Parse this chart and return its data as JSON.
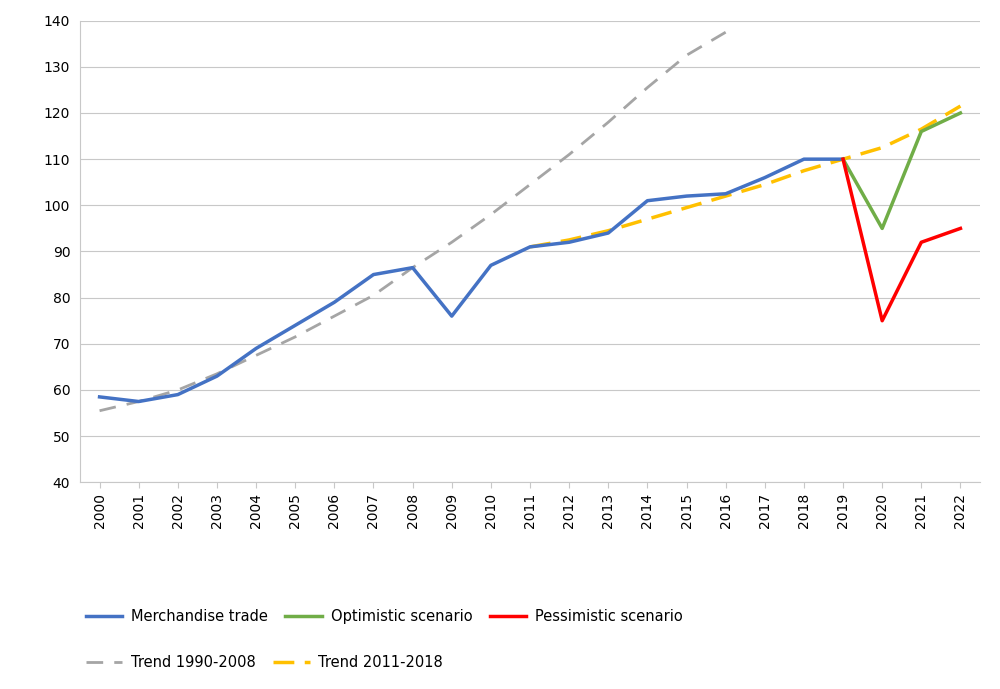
{
  "merchandise_trade": {
    "years": [
      2000,
      2001,
      2002,
      2003,
      2004,
      2005,
      2006,
      2007,
      2008,
      2009,
      2010,
      2011,
      2012,
      2013,
      2014,
      2015,
      2016,
      2017,
      2018,
      2019
    ],
    "values": [
      58.5,
      57.5,
      59.0,
      63.0,
      69.0,
      74.0,
      79.0,
      85.0,
      86.5,
      76.0,
      87.0,
      91.0,
      92.0,
      94.0,
      101.0,
      102.0,
      102.5,
      106.0,
      110.0,
      110.0
    ]
  },
  "optimistic_scenario": {
    "years": [
      2019,
      2020,
      2021,
      2022
    ],
    "values": [
      110.0,
      95.0,
      116.0,
      120.0
    ]
  },
  "pessimistic_scenario": {
    "years": [
      2019,
      2020,
      2021,
      2022
    ],
    "values": [
      110.0,
      75.0,
      92.0,
      95.0
    ]
  },
  "trend_1990_2008": {
    "years": [
      2000,
      2001,
      2002,
      2003,
      2004,
      2005,
      2006,
      2007,
      2008,
      2009,
      2010,
      2011,
      2012,
      2013,
      2014,
      2015,
      2016
    ],
    "values": [
      55.5,
      57.5,
      60.0,
      63.5,
      67.5,
      71.5,
      76.0,
      80.5,
      86.5,
      92.0,
      98.0,
      104.5,
      111.0,
      118.0,
      125.5,
      132.5,
      137.5
    ]
  },
  "trend_2011_2018": {
    "years": [
      2011,
      2012,
      2013,
      2014,
      2015,
      2016,
      2017,
      2018,
      2019,
      2020,
      2021,
      2022
    ],
    "values": [
      91.0,
      92.5,
      94.5,
      97.0,
      99.5,
      102.0,
      104.5,
      107.5,
      110.0,
      112.5,
      116.5,
      121.5
    ]
  },
  "colors": {
    "merchandise_trade": "#4472C4",
    "optimistic_scenario": "#70AD47",
    "pessimistic_scenario": "#FF0000",
    "trend_1990_2008": "#A5A5A5",
    "trend_2011_2018": "#FFC000"
  },
  "ylim": [
    40,
    140
  ],
  "yticks": [
    40,
    50,
    60,
    70,
    80,
    90,
    100,
    110,
    120,
    130,
    140
  ],
  "xlim": [
    1999.5,
    2022.5
  ],
  "xticks": [
    2000,
    2001,
    2002,
    2003,
    2004,
    2005,
    2006,
    2007,
    2008,
    2009,
    2010,
    2011,
    2012,
    2013,
    2014,
    2015,
    2016,
    2017,
    2018,
    2019,
    2020,
    2021,
    2022
  ],
  "linewidth_main": 2.5,
  "linewidth_trend": 2.0,
  "legend_labels": {
    "merchandise_trade": "Merchandise trade",
    "optimistic_scenario": "Optimistic scenario",
    "pessimistic_scenario": "Pessimistic scenario",
    "trend_1990_2008": "Trend 1990-2008",
    "trend_2011_2018": "Trend 2011-2018"
  },
  "background_color": "#FFFFFF",
  "plot_bg_color": "#FFFFFF",
  "grid_color": "#C8C8C8"
}
